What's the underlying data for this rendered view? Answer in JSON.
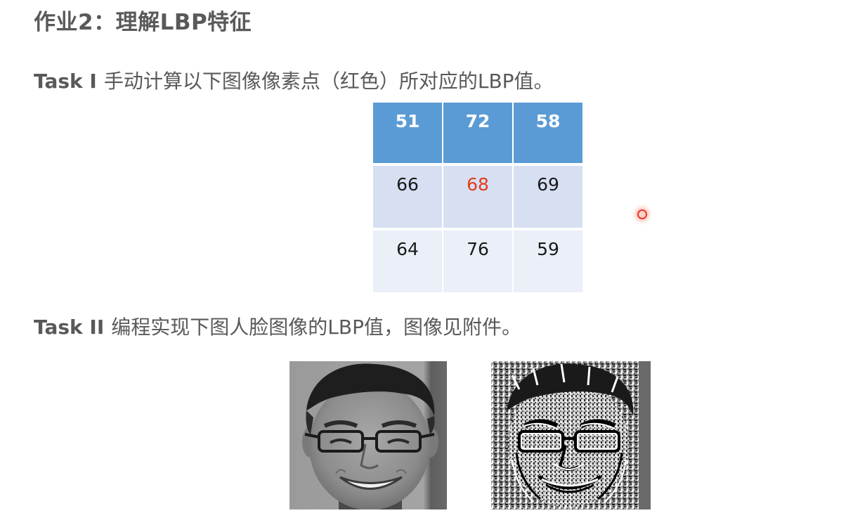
{
  "title": "作业2：理解LBP特征",
  "task1": {
    "label": "Task I",
    "text": "手动计算以下图像像素点（红色）所对应的LBP值。"
  },
  "grid": {
    "rows": [
      [
        "51",
        "72",
        "58"
      ],
      [
        "66",
        "68",
        "69"
      ],
      [
        "64",
        "76",
        "59"
      ]
    ],
    "highlight_color": "#e8391a",
    "header_color": "#5b9bd5"
  },
  "task2": {
    "label": "Task II",
    "text": "编程实现下图人脸图像的LBP值，图像见附件。"
  },
  "images": {
    "original": "face-photo",
    "lbp": "lbp-texture-image"
  }
}
